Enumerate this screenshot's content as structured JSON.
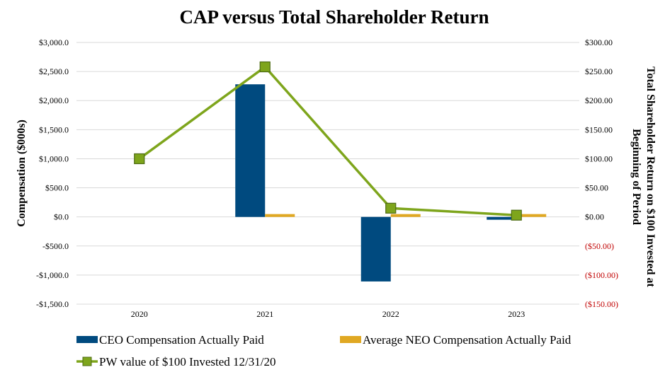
{
  "chart_data": {
    "type": "bar+line",
    "title": "CAP versus Total Shareholder Return",
    "categories": [
      "2020",
      "2021",
      "2022",
      "2023"
    ],
    "ylabel_left": "Compensation ($000s)",
    "ylabel_right_line1": "Total Shareholder Return on $100 Invested at",
    "ylabel_right_line2": "Beginning of Period",
    "ylim_left": [
      -1500,
      3000
    ],
    "ylim_right": [
      -150,
      300
    ],
    "left_ticks": [
      {
        "value": 3000,
        "label": "$3,000.0"
      },
      {
        "value": 2500,
        "label": "$2,500.0"
      },
      {
        "value": 2000,
        "label": "$2,000.0"
      },
      {
        "value": 1500,
        "label": "$1,500.0"
      },
      {
        "value": 1000,
        "label": "$1,000.0"
      },
      {
        "value": 500,
        "label": "$500.0"
      },
      {
        "value": 0,
        "label": "$0.0"
      },
      {
        "value": -500,
        "label": "-$500.0"
      },
      {
        "value": -1000,
        "label": "-$1,000.0"
      },
      {
        "value": -1500,
        "label": "-$1,500.0"
      }
    ],
    "right_ticks": [
      {
        "value": 300,
        "label": "$300.00"
      },
      {
        "value": 250,
        "label": "$250.00"
      },
      {
        "value": 200,
        "label": "$200.00"
      },
      {
        "value": 150,
        "label": "$150.00"
      },
      {
        "value": 100,
        "label": "$100.00"
      },
      {
        "value": 50,
        "label": "$50.00"
      },
      {
        "value": 0,
        "label": "$0.00"
      },
      {
        "value": -50,
        "label": "($50.00)"
      },
      {
        "value": -100,
        "label": "($100.00)"
      },
      {
        "value": -150,
        "label": "($150.00)"
      }
    ],
    "series": [
      {
        "name": "CEO Compensation Actually Paid",
        "type": "bar",
        "axis": "left",
        "color": "#004a7f",
        "values": [
          0,
          2280,
          -1110,
          -30
        ]
      },
      {
        "name": "Average NEO Compensation Actually Paid",
        "type": "bar",
        "axis": "left",
        "color": "#e0a823",
        "values": [
          0,
          40,
          40,
          60
        ]
      },
      {
        "name": "PW value of $100 Invested 12/31/20",
        "type": "line",
        "axis": "right",
        "color": "#7ea51c",
        "marker_fill": "#7ea51c",
        "marker_edge": "#4d6b14",
        "values": [
          100,
          258,
          15,
          3
        ]
      }
    ],
    "grid": true,
    "legend_position": "bottom"
  }
}
